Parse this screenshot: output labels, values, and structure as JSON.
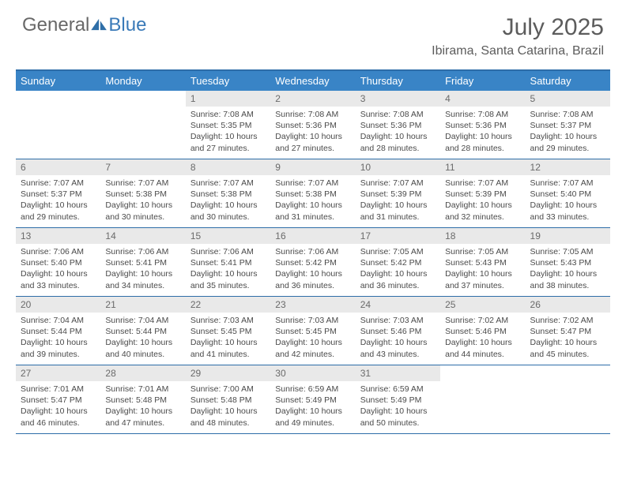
{
  "logo": {
    "text1": "General",
    "text2": "Blue"
  },
  "title": "July 2025",
  "location": "Ibirama, Santa Catarina, Brazil",
  "colors": {
    "header_bg": "#3984c6",
    "border": "#2d6da8",
    "daynum_bg": "#e9e9e9",
    "text_muted": "#5c5c5c"
  },
  "day_names": [
    "Sunday",
    "Monday",
    "Tuesday",
    "Wednesday",
    "Thursday",
    "Friday",
    "Saturday"
  ],
  "weeks": [
    [
      null,
      null,
      {
        "n": "1",
        "sr": "7:08 AM",
        "ss": "5:35 PM",
        "dl": "10 hours and 27 minutes."
      },
      {
        "n": "2",
        "sr": "7:08 AM",
        "ss": "5:36 PM",
        "dl": "10 hours and 27 minutes."
      },
      {
        "n": "3",
        "sr": "7:08 AM",
        "ss": "5:36 PM",
        "dl": "10 hours and 28 minutes."
      },
      {
        "n": "4",
        "sr": "7:08 AM",
        "ss": "5:36 PM",
        "dl": "10 hours and 28 minutes."
      },
      {
        "n": "5",
        "sr": "7:08 AM",
        "ss": "5:37 PM",
        "dl": "10 hours and 29 minutes."
      }
    ],
    [
      {
        "n": "6",
        "sr": "7:07 AM",
        "ss": "5:37 PM",
        "dl": "10 hours and 29 minutes."
      },
      {
        "n": "7",
        "sr": "7:07 AM",
        "ss": "5:38 PM",
        "dl": "10 hours and 30 minutes."
      },
      {
        "n": "8",
        "sr": "7:07 AM",
        "ss": "5:38 PM",
        "dl": "10 hours and 30 minutes."
      },
      {
        "n": "9",
        "sr": "7:07 AM",
        "ss": "5:38 PM",
        "dl": "10 hours and 31 minutes."
      },
      {
        "n": "10",
        "sr": "7:07 AM",
        "ss": "5:39 PM",
        "dl": "10 hours and 31 minutes."
      },
      {
        "n": "11",
        "sr": "7:07 AM",
        "ss": "5:39 PM",
        "dl": "10 hours and 32 minutes."
      },
      {
        "n": "12",
        "sr": "7:07 AM",
        "ss": "5:40 PM",
        "dl": "10 hours and 33 minutes."
      }
    ],
    [
      {
        "n": "13",
        "sr": "7:06 AM",
        "ss": "5:40 PM",
        "dl": "10 hours and 33 minutes."
      },
      {
        "n": "14",
        "sr": "7:06 AM",
        "ss": "5:41 PM",
        "dl": "10 hours and 34 minutes."
      },
      {
        "n": "15",
        "sr": "7:06 AM",
        "ss": "5:41 PM",
        "dl": "10 hours and 35 minutes."
      },
      {
        "n": "16",
        "sr": "7:06 AM",
        "ss": "5:42 PM",
        "dl": "10 hours and 36 minutes."
      },
      {
        "n": "17",
        "sr": "7:05 AM",
        "ss": "5:42 PM",
        "dl": "10 hours and 36 minutes."
      },
      {
        "n": "18",
        "sr": "7:05 AM",
        "ss": "5:43 PM",
        "dl": "10 hours and 37 minutes."
      },
      {
        "n": "19",
        "sr": "7:05 AM",
        "ss": "5:43 PM",
        "dl": "10 hours and 38 minutes."
      }
    ],
    [
      {
        "n": "20",
        "sr": "7:04 AM",
        "ss": "5:44 PM",
        "dl": "10 hours and 39 minutes."
      },
      {
        "n": "21",
        "sr": "7:04 AM",
        "ss": "5:44 PM",
        "dl": "10 hours and 40 minutes."
      },
      {
        "n": "22",
        "sr": "7:03 AM",
        "ss": "5:45 PM",
        "dl": "10 hours and 41 minutes."
      },
      {
        "n": "23",
        "sr": "7:03 AM",
        "ss": "5:45 PM",
        "dl": "10 hours and 42 minutes."
      },
      {
        "n": "24",
        "sr": "7:03 AM",
        "ss": "5:46 PM",
        "dl": "10 hours and 43 minutes."
      },
      {
        "n": "25",
        "sr": "7:02 AM",
        "ss": "5:46 PM",
        "dl": "10 hours and 44 minutes."
      },
      {
        "n": "26",
        "sr": "7:02 AM",
        "ss": "5:47 PM",
        "dl": "10 hours and 45 minutes."
      }
    ],
    [
      {
        "n": "27",
        "sr": "7:01 AM",
        "ss": "5:47 PM",
        "dl": "10 hours and 46 minutes."
      },
      {
        "n": "28",
        "sr": "7:01 AM",
        "ss": "5:48 PM",
        "dl": "10 hours and 47 minutes."
      },
      {
        "n": "29",
        "sr": "7:00 AM",
        "ss": "5:48 PM",
        "dl": "10 hours and 48 minutes."
      },
      {
        "n": "30",
        "sr": "6:59 AM",
        "ss": "5:49 PM",
        "dl": "10 hours and 49 minutes."
      },
      {
        "n": "31",
        "sr": "6:59 AM",
        "ss": "5:49 PM",
        "dl": "10 hours and 50 minutes."
      },
      null,
      null
    ]
  ],
  "labels": {
    "sunrise": "Sunrise:",
    "sunset": "Sunset:",
    "daylight": "Daylight:"
  }
}
